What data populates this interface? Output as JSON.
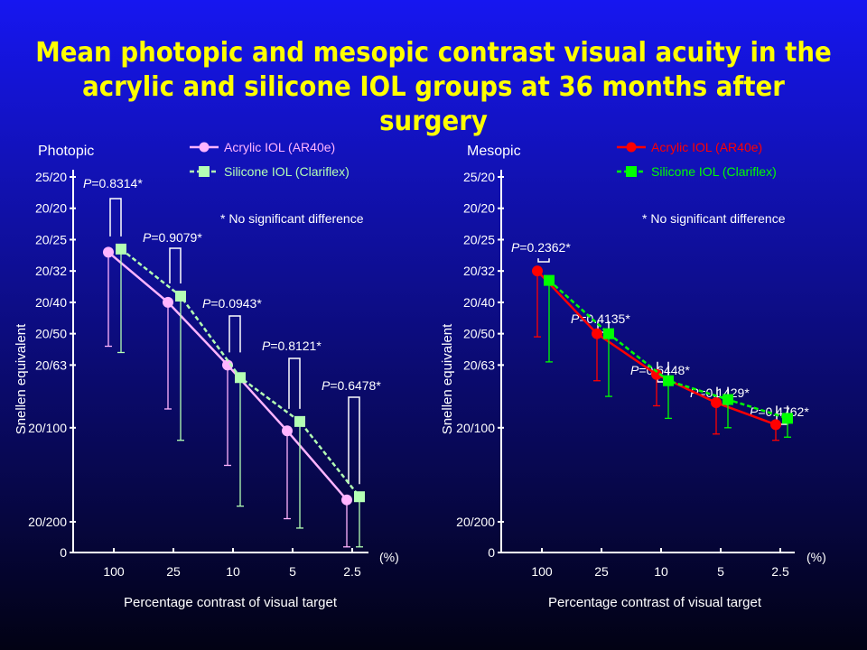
{
  "title": {
    "line1": "Mean photopic and mesopic contrast visual acuity in the",
    "line2": "acrylic and silicone IOL groups at 36 months after surgery"
  },
  "colors": {
    "background_top": "#1616f0",
    "background_bottom": "#020214",
    "title": "#ffff00",
    "photopic_acrylic": "#ffb4ff",
    "photopic_silicone": "#b4ffb4",
    "mesopic_acrylic": "#ff0000",
    "mesopic_silicone": "#00ff00"
  },
  "chart_data": [
    {
      "type": "line",
      "panel_label": "Photopic",
      "xlabel": "Percentage contrast of visual target",
      "x_unit": "(%)",
      "ylabel": "Snellen equivalent",
      "categories": [
        "100",
        "25",
        "10",
        "5",
        "2.5"
      ],
      "y_ticks": [
        "0",
        "20/200",
        "20/100",
        "20/63",
        "20/50",
        "20/40",
        "20/32",
        "20/25",
        "20/20",
        "25/20"
      ],
      "y_tick_logmar": [
        null,
        1.0,
        0.7,
        0.5,
        0.4,
        0.3,
        0.2,
        0.1,
        0.0,
        -0.1
      ],
      "y_axis": "logMAR shown as Snellen equivalents, top = better acuity",
      "series": [
        {
          "name": "Acrylic IOL (AR40e)",
          "style": "solid",
          "marker": "circle",
          "logmar": [
            0.14,
            0.3,
            0.5,
            0.71,
            0.93
          ],
          "error_low": [
            0.44,
            0.64,
            0.82,
            0.99,
            1.08
          ]
        },
        {
          "name": "Silicone IOL (Clariflex)",
          "style": "dashed",
          "marker": "square",
          "logmar": [
            0.13,
            0.28,
            0.54,
            0.68,
            0.92
          ],
          "error_low": [
            0.46,
            0.74,
            0.95,
            1.02,
            1.08
          ]
        }
      ],
      "p_values": [
        "P=0.8314*",
        "P=0.9079*",
        "P=0.0943*",
        "P=0.8121*",
        "P=0.6478*"
      ],
      "note": "* No significant difference",
      "legend": "top-right"
    },
    {
      "type": "line",
      "panel_label": "Mesopic",
      "xlabel": "Percentage contrast of visual target",
      "x_unit": "(%)",
      "ylabel": "Snellen equivalent",
      "categories": [
        "100",
        "25",
        "10",
        "5",
        "2.5"
      ],
      "y_ticks": [
        "0",
        "20/200",
        "20/100",
        "20/63",
        "20/50",
        "20/40",
        "20/32",
        "20/25",
        "20/20",
        "25/20"
      ],
      "y_tick_logmar": [
        null,
        1.0,
        0.7,
        0.5,
        0.4,
        0.3,
        0.2,
        0.1,
        0.0,
        -0.1
      ],
      "y_axis": "logMAR shown as Snellen equivalents, top = better acuity",
      "series": [
        {
          "name": "Acrylic IOL (AR40e)",
          "style": "solid",
          "marker": "circle",
          "logmar": [
            0.2,
            0.4,
            0.53,
            0.62,
            0.69
          ],
          "error_low": [
            0.41,
            0.55,
            0.63,
            0.72,
            0.74
          ]
        },
        {
          "name": "Silicone IOL (Clariflex)",
          "style": "dashed",
          "marker": "square",
          "logmar": [
            0.23,
            0.4,
            0.55,
            0.61,
            0.67
          ],
          "error_low": [
            0.49,
            0.6,
            0.67,
            0.7,
            0.73
          ]
        }
      ],
      "p_values": [
        "P=0.2362*",
        "P=0.4135*",
        "P=0.6448*",
        "P=0.1429*",
        "P=0.4762*"
      ],
      "note": "* No significant difference",
      "legend": "top-right"
    }
  ]
}
